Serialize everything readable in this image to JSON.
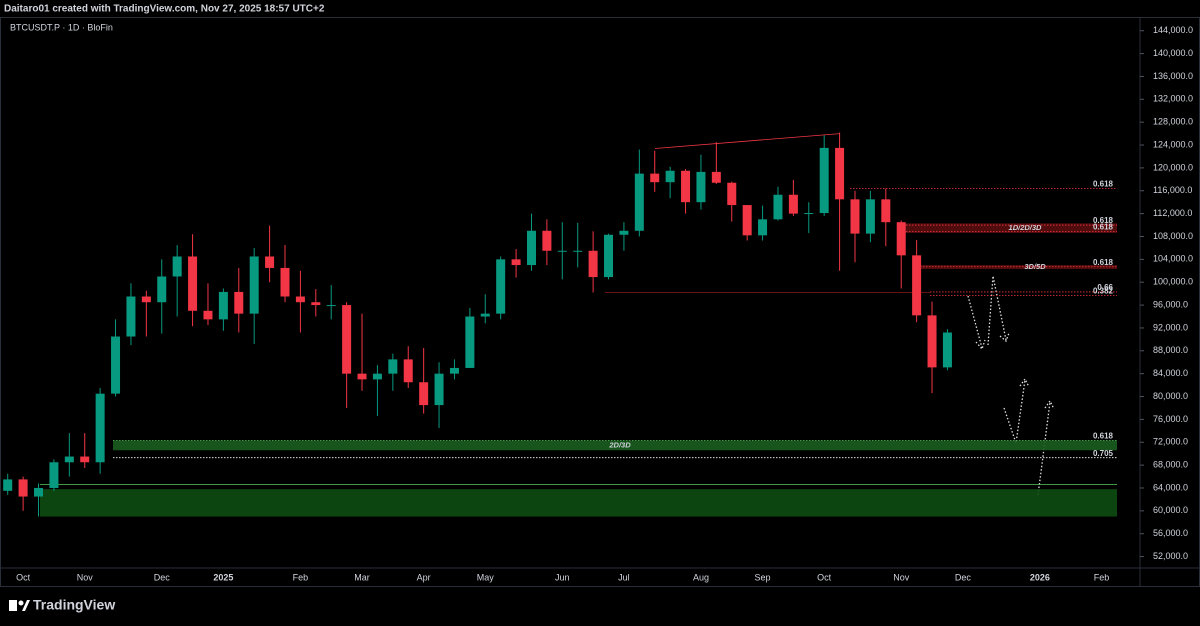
{
  "chart_data": {
    "type": "candlestick",
    "credit": "Daitaro01 created with TradingView.com, Nov 27, 2025 18:57 UTC+2",
    "title": "BTCUSDT.P · 1D · BloFin",
    "brand": "TradingView",
    "categories": [
      null,
      "Oct",
      null,
      null,
      null,
      "Nov",
      null,
      null,
      null,
      null,
      "Dec",
      null,
      null,
      null,
      "2025",
      null,
      null,
      null,
      null,
      "Feb",
      null,
      null,
      null,
      "Mar",
      null,
      null,
      null,
      "Apr",
      null,
      null,
      null,
      "May",
      null,
      null,
      null,
      null,
      "Jun",
      null,
      null,
      null,
      "Jul",
      null,
      null,
      null,
      null,
      "Aug",
      null,
      null,
      null,
      "Sep",
      null,
      null,
      null,
      "Oct",
      null,
      null,
      null,
      null,
      "Nov",
      null,
      null,
      null,
      "Dec",
      null,
      null,
      null,
      null,
      "2026",
      null,
      null,
      null,
      "Feb",
      null,
      null
    ],
    "open": [
      63500,
      65500,
      62500,
      64000,
      68500,
      69500,
      68500,
      80500,
      90500,
      97500,
      96500,
      101000,
      104500,
      95000,
      93500,
      98300,
      94500,
      104500,
      102500,
      97500,
      96500,
      96000,
      96000,
      84000,
      83000,
      84000,
      86500,
      82500,
      78500,
      84000,
      85000,
      94000,
      94500,
      104000,
      103000,
      109000,
      105500,
      105500,
      105500,
      100900,
      108300,
      109000,
      119000,
      117500,
      119500,
      114000,
      119300,
      117400,
      113500,
      108200,
      111000,
      115300,
      112000,
      112100,
      123500,
      114500,
      108500,
      114500,
      110500,
      104700,
      94200,
      85100,
      null,
      null,
      null,
      null,
      null,
      null,
      null,
      null,
      null,
      null,
      null,
      null
    ],
    "high": [
      66500,
      66000,
      64800,
      69000,
      73600,
      73600,
      81500,
      93500,
      99800,
      98500,
      104000,
      106500,
      108400,
      99800,
      98900,
      102500,
      106000,
      109900,
      106500,
      102000,
      98800,
      99500,
      96500,
      94500,
      85500,
      87500,
      88800,
      88500,
      86000,
      86500,
      95500,
      97900,
      104500,
      105800,
      112000,
      111000,
      110500,
      110400,
      108900,
      108500,
      110500,
      123200,
      123000,
      120200,
      119800,
      122300,
      124500,
      117600,
      113500,
      113400,
      116700,
      117900,
      114000,
      125700,
      126200,
      116000,
      116000,
      116400,
      110800,
      107400,
      96600,
      91800,
      null,
      null,
      null,
      null,
      null,
      null,
      null,
      null,
      null,
      null,
      null,
      null
    ],
    "low": [
      62800,
      60000,
      59000,
      63500,
      66000,
      67500,
      66500,
      80000,
      89000,
      90500,
      91000,
      94000,
      92300,
      92500,
      91500,
      91200,
      89200,
      100000,
      96500,
      91200,
      94000,
      93500,
      78000,
      81000,
      76600,
      81000,
      81500,
      77000,
      74500,
      83000,
      85000,
      92800,
      93500,
      100800,
      102000,
      103000,
      100500,
      102600,
      98200,
      100500,
      105500,
      108000,
      115800,
      114700,
      112000,
      112700,
      117200,
      110600,
      107300,
      107300,
      110800,
      111600,
      108600,
      111600,
      102000,
      103500,
      107000,
      106300,
      98900,
      93000,
      80600,
      84600,
      null,
      null,
      null,
      null,
      null,
      null,
      null,
      null,
      null,
      null,
      null,
      null
    ],
    "close": [
      65500,
      62500,
      64000,
      68500,
      69500,
      68500,
      80500,
      90500,
      97500,
      96500,
      101000,
      104500,
      95000,
      93500,
      98300,
      94500,
      104500,
      102500,
      97500,
      96500,
      96000,
      96000,
      84000,
      83000,
      84000,
      86500,
      82500,
      78500,
      84000,
      85000,
      94000,
      94500,
      104000,
      103000,
      109000,
      105500,
      105500,
      105500,
      100900,
      108300,
      109000,
      119000,
      117500,
      119500,
      114000,
      119300,
      117400,
      113500,
      108200,
      111000,
      115300,
      112000,
      112100,
      123500,
      114500,
      108500,
      114500,
      110500,
      104700,
      94200,
      85100,
      91200,
      null,
      null,
      null,
      null,
      null,
      null,
      null,
      null,
      null,
      null,
      null,
      null
    ],
    "up_color": "#089981",
    "down_color": "#f23645",
    "ylim": [
      50000,
      146400
    ],
    "yticks": [
      {
        "value": 144000,
        "label": "144,000.0"
      },
      {
        "value": 140000,
        "label": "140,000.0"
      },
      {
        "value": 136000,
        "label": "136,000.0"
      },
      {
        "value": 132000,
        "label": "132,000.0"
      },
      {
        "value": 128000,
        "label": "128,000.0"
      },
      {
        "value": 124000,
        "label": "124,000.0"
      },
      {
        "value": 120000,
        "label": "120,000.0"
      },
      {
        "value": 116000,
        "label": "116,000.0"
      },
      {
        "value": 112000,
        "label": "112,000.0"
      },
      {
        "value": 108000,
        "label": "108,000.0"
      },
      {
        "value": 104000,
        "label": "104,000.0"
      },
      {
        "value": 100000,
        "label": "100,000.0"
      },
      {
        "value": 96000,
        "label": "96,000.0"
      },
      {
        "value": 92000,
        "label": "92,000.0"
      },
      {
        "value": 88000,
        "label": "88,000.0"
      },
      {
        "value": 84000,
        "label": "84,000.0"
      },
      {
        "value": 80000,
        "label": "80,000.0"
      },
      {
        "value": 76000,
        "label": "76,000.0"
      },
      {
        "value": 72000,
        "label": "72,000.0"
      },
      {
        "value": 68000,
        "label": "68,000.0"
      },
      {
        "value": 64000,
        "label": "64,000.0"
      },
      {
        "value": 60000,
        "label": "60,000.0"
      },
      {
        "value": 56000,
        "label": "56,000.0"
      },
      {
        "value": 52000,
        "label": "52,000.0"
      }
    ],
    "grid": false,
    "annotations": {
      "zones": [
        {
          "label": "1D/2D/3D",
          "top": 110300,
          "bottom": 108600,
          "color": "#5a0e0e"
        },
        {
          "label": "3D/5D",
          "top": 103000,
          "bottom": 102300,
          "color": "#5a0e0e"
        },
        {
          "label": "2D/3D",
          "top": 72300,
          "bottom": 70600,
          "color": "#1b5e20"
        },
        {
          "top": 63800,
          "bottom": 59000,
          "color": "#0d4d12"
        }
      ],
      "levels": [
        {
          "label": "0.618",
          "value": 116400,
          "color": "#f23645"
        },
        {
          "label": "0.618",
          "value": 110000,
          "color": "#f23645"
        },
        {
          "label": "0.618",
          "value": 108900,
          "color": "#f23645"
        },
        {
          "label": "0.618",
          "value": 102700,
          "color": "#f23645"
        },
        {
          "label": "0.66",
          "value": 98300,
          "color": "#f23645"
        },
        {
          "label": "0.382",
          "value": 97700,
          "color": "#f23645"
        },
        {
          "label": "0.618",
          "value": 72300,
          "color": "#4caf50"
        },
        {
          "label": "0.705",
          "value": 69300,
          "color": "#ffffff"
        },
        {
          "value": 98200,
          "color": "#8b1a1a"
        },
        {
          "value": 64600,
          "color": "#4caf50"
        }
      ],
      "trendline": {
        "from": 123400,
        "to": 126000,
        "color": "#f23645"
      }
    }
  }
}
